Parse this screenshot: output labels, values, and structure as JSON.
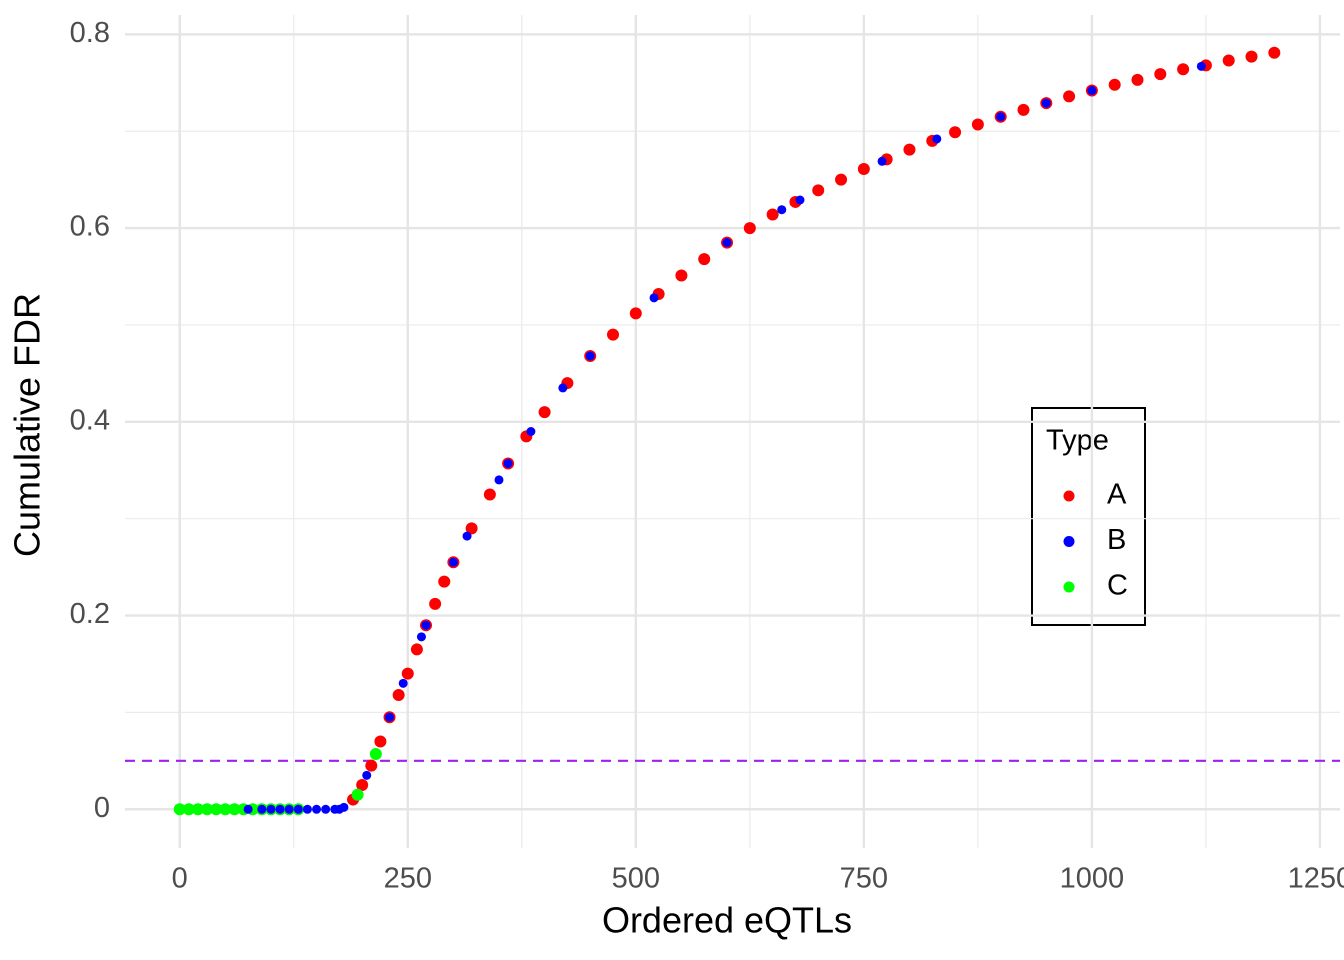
{
  "chart_data": {
    "type": "scatter",
    "x_label": "Ordered eQTLs",
    "y_label": "Cumulative FDR",
    "xlim": [
      -60,
      1272
    ],
    "ylim": [
      -0.04,
      0.82
    ],
    "xticks": [
      0,
      250,
      500,
      750,
      1000,
      1250
    ],
    "yticks": [
      0,
      0.2,
      0.4,
      0.6,
      0.8
    ],
    "grid": true,
    "minor_grid": true,
    "hline": {
      "value": 0.05,
      "color": "#a020f0",
      "dash": true
    },
    "legend_title": "Type",
    "legend_position": "right",
    "series": [
      {
        "name": "A",
        "color": "#ff0000",
        "x": [
          190,
          200,
          210,
          220,
          230,
          240,
          250,
          260,
          270,
          280,
          290,
          300,
          320,
          340,
          360,
          380,
          400,
          425,
          450,
          475,
          500,
          525,
          550,
          575,
          600,
          625,
          650,
          675,
          700,
          725,
          750,
          775,
          800,
          825,
          850,
          875,
          900,
          925,
          950,
          975,
          1000,
          1025,
          1050,
          1075,
          1100,
          1125,
          1150,
          1175,
          1200
        ],
        "values": [
          0.01,
          0.025,
          0.045,
          0.07,
          0.095,
          0.118,
          0.14,
          0.165,
          0.19,
          0.212,
          0.235,
          0.255,
          0.29,
          0.325,
          0.357,
          0.385,
          0.41,
          0.44,
          0.468,
          0.49,
          0.512,
          0.532,
          0.551,
          0.568,
          0.585,
          0.6,
          0.614,
          0.627,
          0.639,
          0.65,
          0.661,
          0.671,
          0.681,
          0.69,
          0.699,
          0.707,
          0.715,
          0.722,
          0.729,
          0.736,
          0.742,
          0.748,
          0.753,
          0.759,
          0.764,
          0.768,
          0.773,
          0.777,
          0.781
        ]
      },
      {
        "name": "B",
        "color": "#0000ff",
        "x": [
          75,
          90,
          100,
          110,
          120,
          130,
          140,
          150,
          160,
          170,
          175,
          180,
          205,
          230,
          245,
          265,
          270,
          300,
          315,
          350,
          360,
          385,
          420,
          450,
          520,
          600,
          660,
          680,
          770,
          830,
          900,
          950,
          1000,
          1120
        ],
        "values": [
          0,
          0,
          0,
          0,
          0,
          0,
          0,
          0,
          0,
          0,
          0,
          0.002,
          0.035,
          0.095,
          0.13,
          0.178,
          0.19,
          0.255,
          0.282,
          0.34,
          0.357,
          0.39,
          0.435,
          0.468,
          0.528,
          0.585,
          0.619,
          0.629,
          0.669,
          0.692,
          0.715,
          0.729,
          0.742,
          0.767
        ]
      },
      {
        "name": "C",
        "color": "#00ff00",
        "x": [
          0,
          10,
          20,
          30,
          40,
          50,
          60,
          70,
          80,
          90,
          100,
          110,
          120,
          130,
          195,
          215
        ],
        "values": [
          0,
          0,
          0,
          0,
          0,
          0,
          0,
          0,
          0,
          0,
          0,
          0,
          0,
          0,
          0.015,
          0.057
        ]
      }
    ]
  }
}
